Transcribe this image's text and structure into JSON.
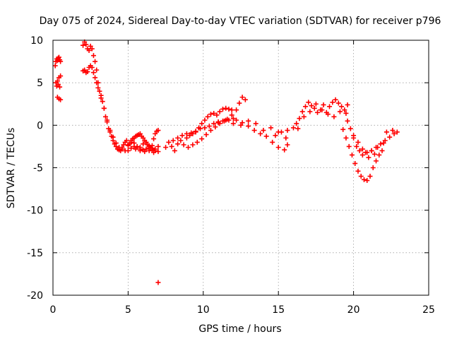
{
  "chart_data": {
    "type": "scatter",
    "title": "Day 075 of 2024, Sidereal Day-to-day VTEC variation (SDTVAR) for receiver p796",
    "xlabel": "GPS time / hours",
    "ylabel": "SDTVAR / TECUs",
    "xlim": [
      0,
      25
    ],
    "ylim": [
      -20,
      10
    ],
    "xticks": [
      0,
      5,
      10,
      15,
      20,
      25
    ],
    "xtick_labels": [
      "0",
      "5",
      "10",
      "15",
      "20",
      "25"
    ],
    "yticks": [
      10,
      5,
      0,
      -5,
      -10,
      -15,
      -20
    ],
    "ytick_labels": [
      "10",
      "5",
      "0",
      "-5",
      "-10",
      "-15",
      "-20"
    ],
    "grid": true,
    "marker": "plus",
    "series": [
      {
        "name": "SDTVAR",
        "color": "#ff0000",
        "x": [
          0.15,
          0.2,
          0.25,
          0.3,
          0.35,
          0.4,
          0.45,
          0.5,
          0.2,
          0.3,
          0.4,
          0.5,
          0.25,
          0.35,
          0.45,
          0.3,
          0.4,
          0.5,
          2.0,
          2.1,
          2.2,
          2.3,
          2.4,
          2.5,
          2.6,
          2.7,
          2.8,
          2.9,
          3.0,
          3.1,
          3.2,
          3.3,
          3.4,
          3.5,
          3.6,
          3.7,
          3.8,
          3.9,
          4.0,
          4.1,
          4.2,
          4.3,
          4.4,
          4.5,
          4.6,
          4.7,
          4.8,
          4.9,
          5.0,
          5.1,
          5.2,
          5.3,
          5.4,
          5.5,
          5.6,
          5.7,
          5.8,
          5.9,
          6.0,
          6.1,
          6.2,
          6.3,
          6.4,
          6.5,
          6.6,
          6.7,
          6.8,
          6.9,
          7.0,
          2.0,
          2.1,
          2.2,
          2.3,
          2.4,
          2.5,
          2.6,
          2.7,
          2.8,
          2.9,
          3.0,
          3.2,
          3.4,
          3.6,
          3.8,
          4.0,
          4.2,
          4.4,
          4.6,
          4.8,
          5.0,
          5.2,
          5.4,
          5.6,
          5.8,
          6.0,
          6.2,
          6.4,
          6.6,
          6.8,
          5.0,
          5.2,
          5.4,
          5.6,
          5.8,
          6.0,
          6.2,
          6.4,
          6.6,
          6.8,
          7.0,
          5.5,
          5.8,
          6.1,
          6.4,
          6.7,
          7.0,
          7.0,
          7.5,
          7.7,
          7.9,
          8.1,
          8.3,
          8.5,
          8.7,
          8.9,
          9.1,
          9.3,
          9.5,
          9.7,
          9.9,
          10.1,
          10.3,
          10.5,
          10.7,
          10.9,
          11.1,
          11.3,
          11.5,
          11.7,
          11.9,
          8.0,
          8.3,
          8.6,
          8.9,
          9.2,
          9.5,
          9.8,
          10.1,
          10.4,
          10.7,
          11.0,
          11.3,
          11.6,
          11.9,
          12.2,
          12.4,
          12.6,
          12.8,
          9.0,
          9.3,
          9.6,
          9.9,
          10.2,
          10.5,
          10.8,
          11.1,
          11.4,
          11.7,
          12.0,
          11.0,
          11.5,
          12.0,
          12.5,
          13.0,
          13.5,
          14.0,
          14.5,
          15.0,
          15.5,
          12.2,
          12.6,
          13.0,
          13.4,
          13.8,
          14.2,
          14.6,
          15.0,
          15.4,
          15.6,
          14.8,
          15.2,
          15.6,
          16.0,
          16.2,
          16.4,
          16.6,
          16.8,
          17.0,
          17.2,
          17.4,
          17.6,
          17.8,
          18.0,
          18.2,
          18.4,
          18.6,
          18.8,
          19.0,
          19.2,
          19.4,
          19.6,
          16.3,
          16.7,
          17.1,
          17.5,
          17.9,
          18.3,
          18.7,
          19.1,
          19.5,
          19.3,
          19.5,
          19.7,
          19.9,
          20.1,
          20.3,
          20.5,
          20.7,
          20.9,
          21.1,
          21.3,
          21.5,
          21.7,
          21.9,
          19.6,
          19.8,
          20.0,
          20.2,
          20.4,
          20.6,
          20.8,
          21.0,
          21.2,
          21.4,
          21.6,
          20.0,
          20.3,
          20.6,
          20.9,
          21.2,
          21.5,
          21.8,
          22.1,
          22.4,
          22.7,
          22.9,
          22.6,
          22.2,
          22.0
        ],
        "y": [
          7.0,
          7.5,
          7.8,
          7.6,
          7.9,
          8.0,
          7.7,
          7.5,
          5.0,
          5.2,
          5.6,
          5.8,
          4.6,
          4.8,
          4.5,
          3.3,
          3.1,
          3.0,
          9.4,
          9.8,
          9.5,
          9.0,
          8.8,
          9.3,
          9.0,
          8.2,
          7.5,
          6.5,
          5.0,
          4.0,
          3.5,
          2.8,
          2.0,
          1.0,
          0.4,
          -0.4,
          -0.8,
          -1.3,
          -1.8,
          -2.2,
          -2.5,
          -2.8,
          -2.9,
          -3.0,
          -2.6,
          -2.3,
          -2.0,
          -1.8,
          -2.4,
          -2.2,
          -1.8,
          -1.6,
          -1.5,
          -1.3,
          -1.2,
          -1.1,
          -1.0,
          -1.3,
          -1.5,
          -1.8,
          -2.0,
          -2.3,
          -2.5,
          -2.6,
          -2.4,
          -1.6,
          -1.0,
          -0.7,
          -0.6,
          6.4,
          6.5,
          6.2,
          6.3,
          6.8,
          7.0,
          6.8,
          6.2,
          5.6,
          5.0,
          4.4,
          3.2,
          2.0,
          0.6,
          -0.6,
          -1.4,
          -2.1,
          -2.6,
          -2.8,
          -3.0,
          -3.0,
          -2.7,
          -2.5,
          -2.6,
          -2.8,
          -2.9,
          -2.8,
          -2.7,
          -2.9,
          -3.0,
          -2.3,
          -2.0,
          -2.1,
          -2.5,
          -2.6,
          -2.2,
          -2.0,
          -2.4,
          -2.7,
          -2.8,
          -2.5,
          -2.8,
          -3.0,
          -3.1,
          -3.0,
          -3.2,
          -3.1,
          -18.5,
          -2.6,
          -2.0,
          -2.5,
          -3.0,
          -2.2,
          -1.8,
          -2.3,
          -1.5,
          -1.2,
          -1.0,
          -0.8,
          -0.3,
          0.2,
          0.6,
          1.0,
          1.3,
          1.4,
          1.2,
          1.6,
          1.9,
          2.0,
          1.9,
          1.8,
          -1.8,
          -1.5,
          -1.2,
          -1.0,
          -0.9,
          -0.7,
          -0.4,
          -0.3,
          -0.1,
          0.2,
          0.3,
          0.5,
          0.7,
          1.2,
          1.8,
          2.6,
          3.3,
          3.0,
          -2.6,
          -2.3,
          -2.0,
          -1.6,
          -1.1,
          -0.6,
          -0.2,
          0.2,
          0.5,
          0.6,
          0.8,
          0.4,
          0.6,
          0.2,
          0.0,
          0.5,
          0.2,
          -0.6,
          -0.3,
          -0.8,
          -1.5,
          0.6,
          0.3,
          -0.1,
          -0.6,
          -1.0,
          -1.3,
          -2.0,
          -2.6,
          -2.9,
          -2.3,
          -1.2,
          -0.8,
          -0.6,
          -0.3,
          0.2,
          0.8,
          1.6,
          2.2,
          2.7,
          2.3,
          2.0,
          1.5,
          1.8,
          2.4,
          1.5,
          2.2,
          2.7,
          3.0,
          2.6,
          2.2,
          1.8,
          2.4,
          -0.4,
          1.0,
          1.6,
          2.5,
          1.8,
          1.3,
          1.0,
          1.6,
          1.4,
          -0.5,
          -1.5,
          -2.5,
          -3.5,
          -4.5,
          -5.4,
          -6.0,
          -6.4,
          -6.5,
          -6.0,
          -5.0,
          -4.2,
          -3.5,
          -3.0,
          0.5,
          -0.4,
          -1.5,
          -2.5,
          -3.0,
          -3.5,
          -3.2,
          -3.8,
          -3.0,
          -3.4,
          -2.6,
          -1.2,
          -2.0,
          -2.8,
          -3.2,
          -3.0,
          -2.6,
          -2.2,
          -1.8,
          -1.4,
          -1.0,
          -0.8,
          -0.6,
          -0.8,
          -2.1
        ]
      }
    ]
  }
}
